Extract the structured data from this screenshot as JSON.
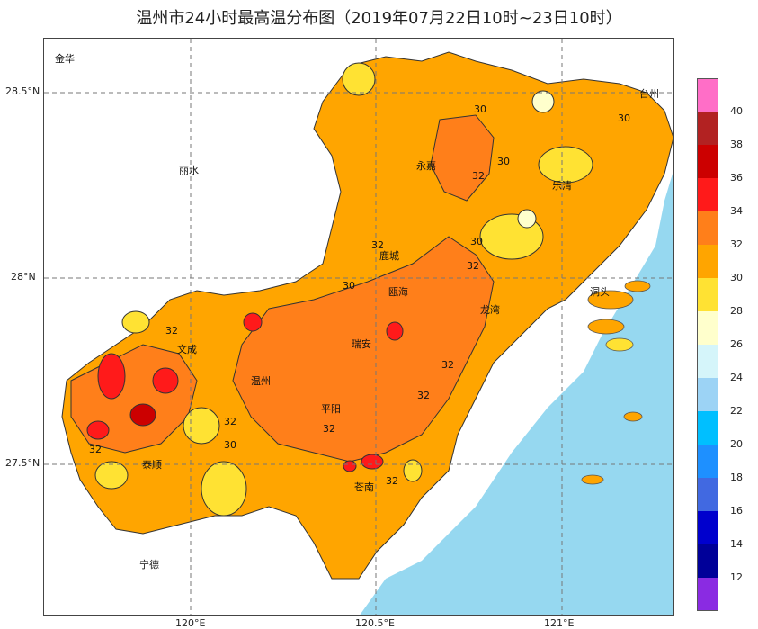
{
  "title": "温州市24小时最高温分布图（2019年07月22日10时~23日10时）",
  "axes": {
    "lat_labels": [
      "28.5°N",
      "28°N",
      "27.5°N"
    ],
    "lon_labels": [
      "120°E",
      "120.5°E",
      "121°E"
    ]
  },
  "place_labels": [
    "金华",
    "丽水",
    "台州",
    "永嘉",
    "乐清",
    "鹿城",
    "瓯海",
    "龙湾",
    "洞头",
    "文成",
    "瑞安",
    "温州",
    "平阳",
    "泰顺",
    "苍南",
    "宁德"
  ],
  "contour_labels": [
    "30",
    "30",
    "32",
    "30",
    "30",
    "32",
    "30",
    "32",
    "32",
    "32",
    "32",
    "32",
    "30",
    "32",
    "32",
    "32"
  ],
  "legend": {
    "levels": [
      "40",
      "38",
      "36",
      "34",
      "32",
      "30",
      "28",
      "26",
      "24",
      "22",
      "20",
      "18",
      "16",
      "14",
      "12"
    ],
    "colors": [
      "#ff6ec7",
      "#b22222",
      "#cc0000",
      "#ff1a1a",
      "#ff7f1a",
      "#ffa500",
      "#ffe233",
      "#ffffcc",
      "#d5f5fa",
      "#9cd3f5",
      "#00bfff",
      "#1e90ff",
      "#4169e1",
      "#0000cd",
      "#000099",
      "#8a2be2"
    ]
  },
  "colors": {
    "sea": "#96d8f0",
    "land": "#ffffff"
  }
}
